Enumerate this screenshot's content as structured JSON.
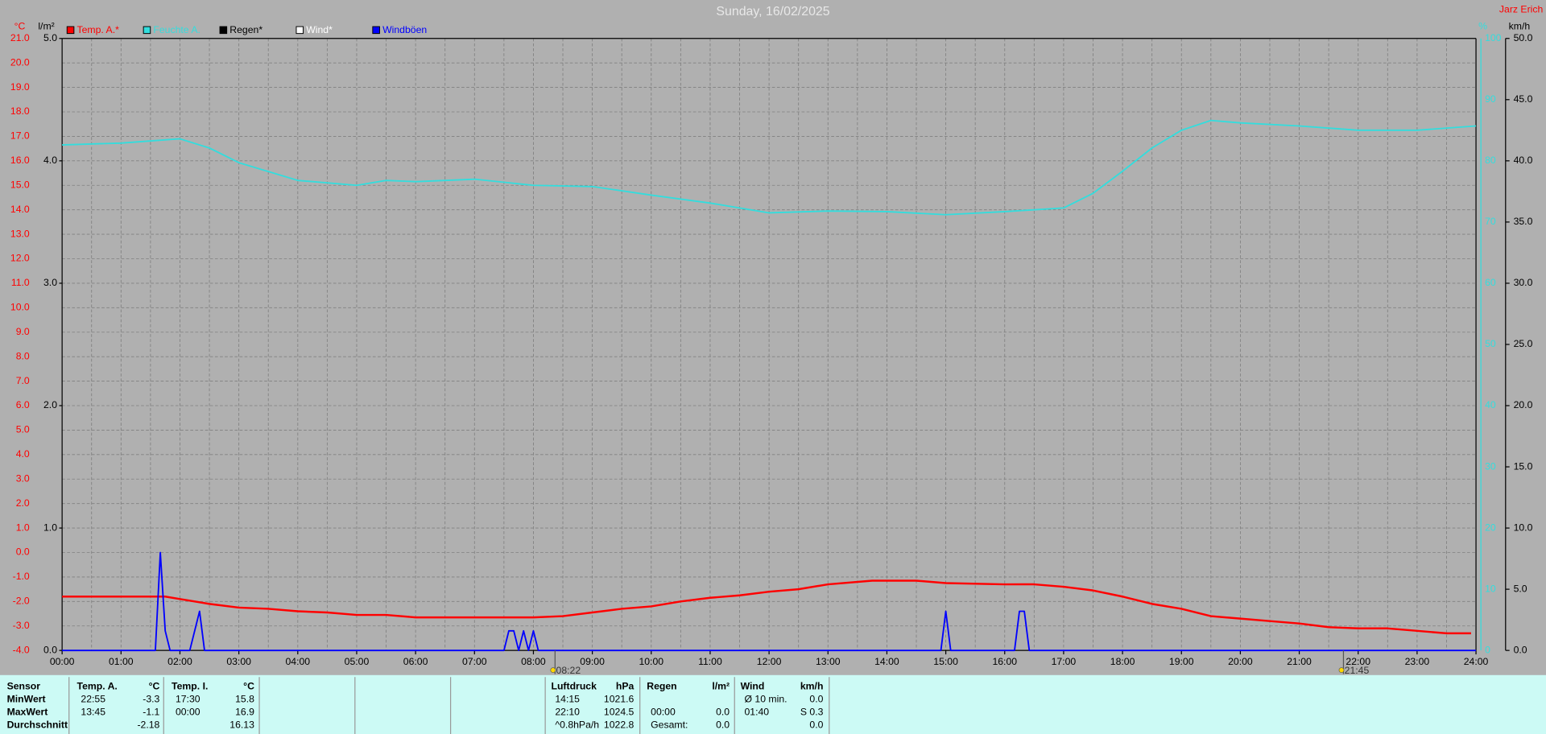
{
  "chart_data": {
    "type": "line",
    "title": "Sunday, 16/02/2025",
    "author": "Jarz Erich",
    "y_unit": "°C",
    "y2_unit": "l/m²",
    "y3_unit": "%",
    "y4_unit": "km/h",
    "grid": true,
    "xlim": [
      0,
      24
    ],
    "xticks": [
      {
        "value": 0,
        "label": "00:00"
      },
      {
        "value": 1,
        "label": "01:00"
      },
      {
        "value": 2,
        "label": "02:00"
      },
      {
        "value": 3,
        "label": "03:00"
      },
      {
        "value": 4,
        "label": "04:00"
      },
      {
        "value": 5,
        "label": "05:00"
      },
      {
        "value": 6,
        "label": "06:00"
      },
      {
        "value": 7,
        "label": "07:00"
      },
      {
        "value": 8,
        "label": "08:00"
      },
      {
        "value": 9,
        "label": "09:00"
      },
      {
        "value": 10,
        "label": "10:00"
      },
      {
        "value": 11,
        "label": "11:00"
      },
      {
        "value": 12,
        "label": "12:00"
      },
      {
        "value": 13,
        "label": "13:00"
      },
      {
        "value": 14,
        "label": "14:00"
      },
      {
        "value": 15,
        "label": "15:00"
      },
      {
        "value": 16,
        "label": "16:00"
      },
      {
        "value": 17,
        "label": "17:00"
      },
      {
        "value": 18,
        "label": "18:00"
      },
      {
        "value": 19,
        "label": "19:00"
      },
      {
        "value": 20,
        "label": "20:00"
      },
      {
        "value": 21,
        "label": "21:00"
      },
      {
        "value": 22,
        "label": "22:00"
      },
      {
        "value": 23,
        "label": "23:00"
      },
      {
        "value": 24,
        "label": "24:00"
      }
    ],
    "ylim": [
      -4,
      21
    ],
    "yticks": [
      {
        "value": -4,
        "label": "-4.0"
      },
      {
        "value": -3,
        "label": "-3.0"
      },
      {
        "value": -2,
        "label": "-2.0"
      },
      {
        "value": -1,
        "label": "-1.0"
      },
      {
        "value": 0,
        "label": "0.0"
      },
      {
        "value": 1,
        "label": "1.0"
      },
      {
        "value": 2,
        "label": "2.0"
      },
      {
        "value": 3,
        "label": "3.0"
      },
      {
        "value": 4,
        "label": "4.0"
      },
      {
        "value": 5,
        "label": "5.0"
      },
      {
        "value": 6,
        "label": "6.0"
      },
      {
        "value": 7,
        "label": "7.0"
      },
      {
        "value": 8,
        "label": "8.0"
      },
      {
        "value": 9,
        "label": "9.0"
      },
      {
        "value": 10,
        "label": "10.0"
      },
      {
        "value": 11,
        "label": "11.0"
      },
      {
        "value": 12,
        "label": "12.0"
      },
      {
        "value": 13,
        "label": "13.0"
      },
      {
        "value": 14,
        "label": "14.0"
      },
      {
        "value": 15,
        "label": "15.0"
      },
      {
        "value": 16,
        "label": "16.0"
      },
      {
        "value": 17,
        "label": "17.0"
      },
      {
        "value": 18,
        "label": "18.0"
      },
      {
        "value": 19,
        "label": "19.0"
      },
      {
        "value": 20,
        "label": "20.0"
      },
      {
        "value": 21,
        "label": "21.0"
      }
    ],
    "y2lim": [
      0,
      5
    ],
    "y2ticks": [
      {
        "value": 0,
        "label": "0.0"
      },
      {
        "value": 1,
        "label": "1.0"
      },
      {
        "value": 2,
        "label": "2.0"
      },
      {
        "value": 3,
        "label": "3.0"
      },
      {
        "value": 4,
        "label": "4.0"
      },
      {
        "value": 5,
        "label": "5.0"
      }
    ],
    "y3lim": [
      0,
      100
    ],
    "y3ticks": [
      0,
      10,
      20,
      30,
      40,
      50,
      60,
      70,
      80,
      90,
      100
    ],
    "y4lim": [
      0,
      50
    ],
    "y4ticks": [
      {
        "value": 0,
        "label": "0.0"
      },
      {
        "value": 5,
        "label": "5.0"
      },
      {
        "value": 10,
        "label": "10.0"
      },
      {
        "value": 15,
        "label": "15.0"
      },
      {
        "value": 20,
        "label": "20.0"
      },
      {
        "value": 25,
        "label": "25.0"
      },
      {
        "value": 30,
        "label": "30.0"
      },
      {
        "value": 35,
        "label": "35.0"
      },
      {
        "value": 40,
        "label": "40.0"
      },
      {
        "value": 45,
        "label": "45.0"
      },
      {
        "value": 50,
        "label": "50.0"
      }
    ],
    "series": [
      {
        "name": "Temp. A.*",
        "color": "#ff0000",
        "axis": "y",
        "x": [
          0,
          1,
          1.75,
          2,
          2.5,
          3,
          3.5,
          4,
          4.5,
          5,
          5.5,
          6,
          7,
          8,
          8.5,
          9,
          9.5,
          10,
          10.5,
          11,
          11.5,
          12,
          12.5,
          13,
          13.75,
          14.5,
          15,
          16,
          16.5,
          17,
          17.5,
          18,
          18.5,
          19,
          19.5,
          20,
          20.5,
          21,
          21.5,
          22,
          22.5,
          23,
          23.5,
          23.917
        ],
        "values": [
          -1.8,
          -1.8,
          -1.8,
          -1.9,
          -2.1,
          -2.25,
          -2.3,
          -2.4,
          -2.45,
          -2.55,
          -2.55,
          -2.65,
          -2.65,
          -2.65,
          -2.6,
          -2.45,
          -2.3,
          -2.2,
          -2.0,
          -1.85,
          -1.75,
          -1.6,
          -1.5,
          -1.3,
          -1.15,
          -1.15,
          -1.25,
          -1.3,
          -1.3,
          -1.4,
          -1.55,
          -1.8,
          -2.1,
          -2.3,
          -2.6,
          -2.7,
          -2.8,
          -2.9,
          -3.05,
          -3.1,
          -3.1,
          -3.2,
          -3.3,
          -3.3
        ]
      },
      {
        "name": "Feuchte A.",
        "color": "#33dddd",
        "axis": "y3",
        "x": [
          0,
          1,
          2,
          2.5,
          3,
          4,
          5,
          5.5,
          6,
          7,
          8,
          9,
          10,
          11,
          12,
          13,
          14,
          15,
          16,
          17,
          17.5,
          18,
          18.5,
          19,
          19.5,
          20,
          21,
          22,
          23,
          24
        ],
        "values": [
          82.6,
          82.9,
          83.6,
          82.1,
          79.7,
          76.8,
          76.0,
          76.8,
          76.6,
          77.0,
          76.0,
          75.8,
          74.4,
          73.1,
          71.5,
          71.8,
          71.7,
          71.2,
          71.7,
          72.3,
          74.7,
          78.3,
          82.1,
          85.0,
          86.6,
          86.2,
          85.7,
          85.0,
          85.0,
          85.7
        ]
      },
      {
        "name": "Regen*",
        "color": "#000000",
        "axis": "y2",
        "x": [],
        "values": []
      },
      {
        "name": "Wind*",
        "color": "#ffffff",
        "axis": "y4",
        "x": [],
        "values": []
      },
      {
        "name": "Windböen",
        "color": "#0000ff",
        "axis": "y4",
        "x": [
          0,
          1.583,
          1.667,
          1.75,
          1.833,
          2.167,
          2.333,
          2.417,
          7.5,
          7.583,
          7.667,
          7.75,
          7.833,
          7.917,
          8.0,
          8.083,
          14.917,
          15.0,
          15.083,
          16.167,
          16.25,
          16.333,
          16.417,
          24
        ],
        "values": [
          0,
          0,
          8,
          1.6,
          0,
          0,
          3.2,
          0,
          0,
          1.6,
          1.6,
          0,
          1.6,
          0,
          1.6,
          0,
          0,
          3.2,
          0,
          0,
          3.2,
          3.2,
          0,
          0
        ]
      }
    ],
    "sun_markers": [
      {
        "x": 8.367,
        "label": "08:22"
      },
      {
        "x": 21.75,
        "label": "21:45"
      }
    ]
  },
  "table": {
    "header": "Sensor",
    "row_labels": [
      "MinWert",
      "MaxWert",
      "Durchschnitt"
    ],
    "groups": [
      {
        "name": "Temp. A.",
        "unit": "°C",
        "rows": [
          {
            "time": "22:55",
            "value": "-3.3"
          },
          {
            "time": "13:45",
            "value": "-1.1"
          },
          {
            "value": "-2.18"
          }
        ]
      },
      {
        "name": "Temp. I.",
        "unit": "°C",
        "rows": [
          {
            "time": "17:30",
            "value": "15.8"
          },
          {
            "time": "00:00",
            "value": "16.9"
          },
          {
            "value": "16.13"
          }
        ]
      },
      {
        "name": "Luftdruck",
        "unit": "hPa",
        "rows": [
          {
            "time": "14:15",
            "value": "1021.6"
          },
          {
            "time": "22:10",
            "value": "1024.5"
          },
          {
            "time": "^0.8hPa/h",
            "value": "1022.8"
          }
        ]
      },
      {
        "name": "Regen",
        "unit": "l/m²",
        "rows": [
          {},
          {
            "time": "00:00",
            "value": "0.0"
          },
          {
            "time": "Gesamt:",
            "value": "0.0"
          }
        ]
      },
      {
        "name": "Wind",
        "unit": "km/h",
        "rows": [
          {
            "time": "Ø 10 min.",
            "value": "0.0"
          },
          {
            "time": "01:40",
            "value": "S 0.3"
          },
          {
            "value": "0.0"
          }
        ]
      }
    ]
  }
}
